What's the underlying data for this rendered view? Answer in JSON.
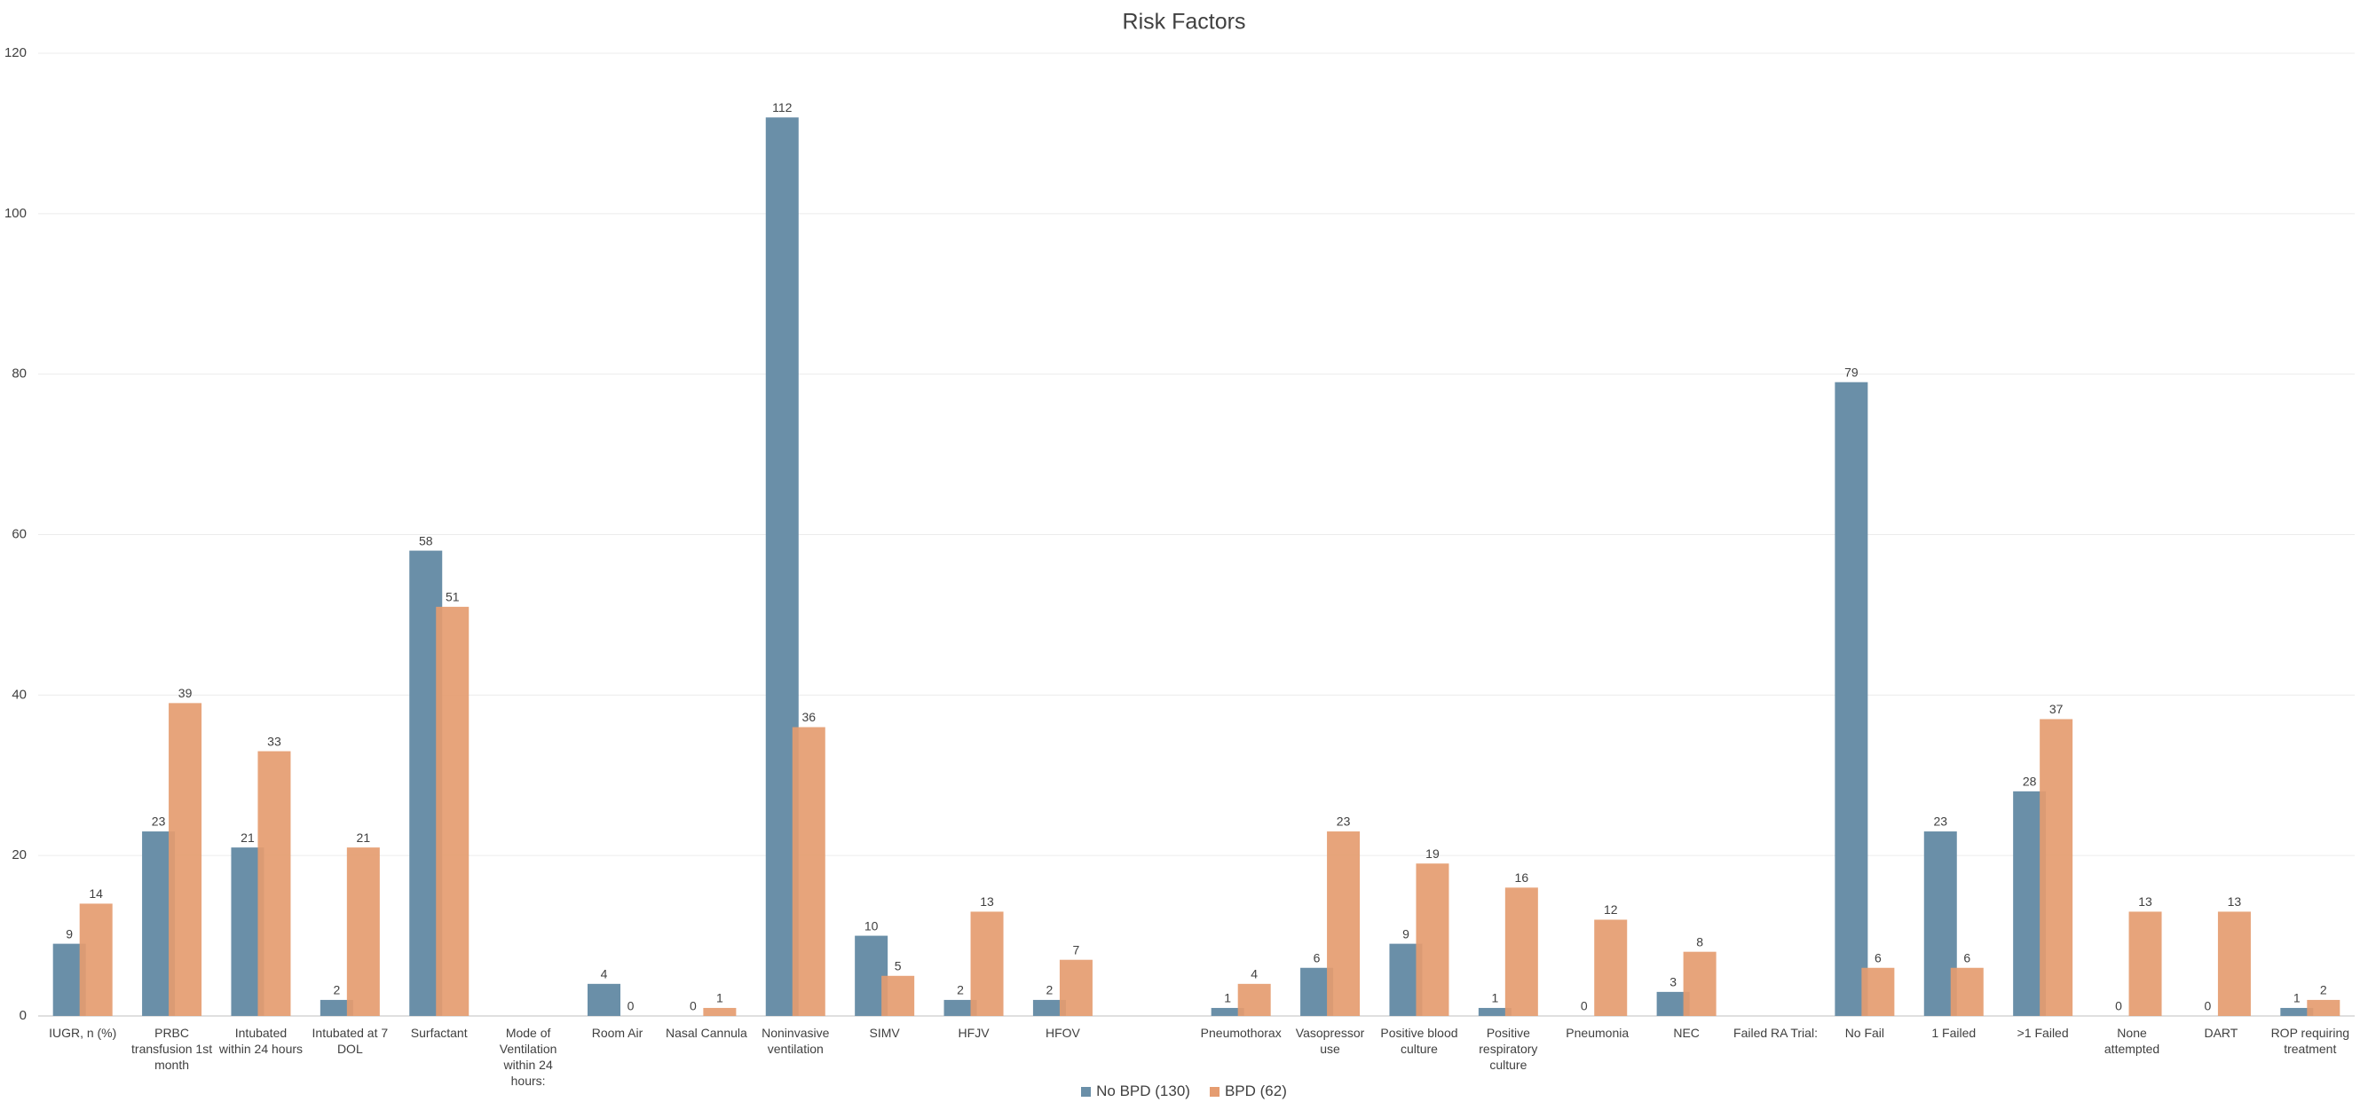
{
  "chart_data": {
    "type": "bar",
    "title": "Risk Factors",
    "categories": [
      "IUGR, n (%)",
      "PRBC transfusion 1st month",
      "Intubated within 24 hours",
      "Intubated at 7 DOL",
      "Surfactant",
      "Mode of Ventilation within 24 hours:",
      "Room Air",
      "Nasal Cannula",
      "Noninvasive ventilation",
      "SIMV",
      "HFJV",
      "HFOV",
      null,
      "Pneumothorax",
      "Vasopressor use",
      "Positive blood culture",
      "Positive respiratory culture",
      "Pneumonia",
      "NEC",
      "Failed RA Trial:",
      "No Fail",
      "1 Failed",
      ">1 Failed",
      "None attempted",
      "DART",
      "ROP requiring treatment"
    ],
    "series": [
      {
        "name": "No BPD (130)",
        "color": "#6a8fa8",
        "values": [
          9,
          23,
          21,
          2,
          58,
          null,
          4,
          0,
          112,
          10,
          2,
          2,
          null,
          1,
          6,
          9,
          1,
          0,
          3,
          null,
          79,
          23,
          28,
          0,
          0,
          1
        ]
      },
      {
        "name": "BPD (62)",
        "color": "#e59c70",
        "values": [
          14,
          39,
          33,
          21,
          51,
          null,
          0,
          1,
          36,
          5,
          13,
          7,
          null,
          4,
          23,
          19,
          16,
          12,
          8,
          null,
          6,
          6,
          37,
          13,
          13,
          2
        ]
      }
    ],
    "ylim": [
      0,
      120
    ],
    "yticks": [
      0,
      20,
      40,
      60,
      80,
      100,
      120
    ],
    "grid": true,
    "legend": "bottom"
  }
}
